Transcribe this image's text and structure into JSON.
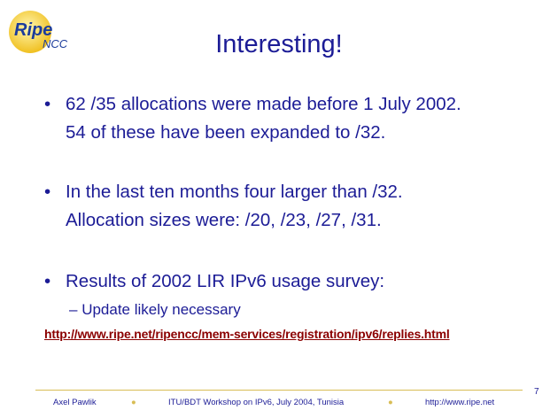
{
  "logo": {
    "name": "Ripe",
    "sub": "NCC"
  },
  "title": "Interesting!",
  "bullets": [
    {
      "lines": [
        "62 /35 allocations were made before 1 July 2002.",
        "54 of these have been expanded to /32."
      ]
    },
    {
      "lines": [
        "In the last ten months four larger than /32.",
        "Allocation sizes were: /20, /23, /27, /31."
      ]
    },
    {
      "lines": [
        "Results of 2002 LIR IPv6 usage survey:"
      ]
    }
  ],
  "sub_bullet": "Update likely necessary",
  "link": "http://www.ripe.net/ripencc/mem-services/registration/ipv6/replies.html",
  "footer": {
    "author": "Axel Pawlik",
    "event": "ITU/BDT Workshop on IPv6, July 2004, Tunisia",
    "url": "http://www.ripe.net",
    "page": "7"
  }
}
